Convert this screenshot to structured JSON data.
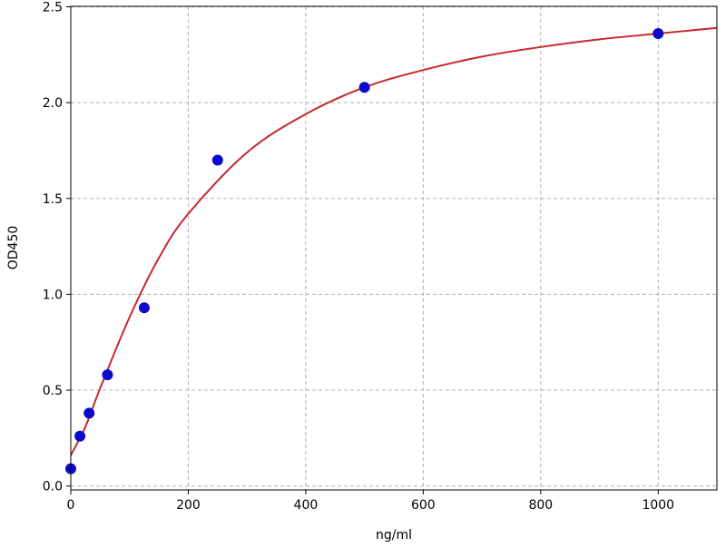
{
  "chart_data": {
    "type": "scatter",
    "title": "",
    "xlabel": "ng/ml",
    "ylabel": "OD450",
    "xlim": [
      0,
      1100
    ],
    "ylim": [
      0,
      2.5
    ],
    "xticks": [
      "0",
      "200",
      "400",
      "600",
      "800",
      "1000"
    ],
    "yticks": [
      "0.0",
      "0.5",
      "1.0",
      "1.5",
      "2.0",
      "2.5"
    ],
    "grid": true,
    "grid_style": "dashed",
    "series": [
      {
        "kind": "points",
        "color": "#0a0acc",
        "x": [
          0,
          15.6,
          31.25,
          62.5,
          125,
          250,
          500,
          1000
        ],
        "y": [
          0.09,
          0.26,
          0.38,
          0.58,
          0.93,
          1.7,
          2.08,
          2.36
        ]
      },
      {
        "kind": "fit-curve",
        "color": "#c8282d",
        "x": [
          0,
          25,
          50,
          100,
          150,
          200,
          300,
          400,
          500,
          600,
          700,
          800,
          900,
          1000,
          1100
        ],
        "y": [
          0.16,
          0.31,
          0.51,
          0.88,
          1.19,
          1.42,
          1.74,
          1.94,
          2.08,
          2.17,
          2.24,
          2.29,
          2.33,
          2.36,
          2.39
        ]
      }
    ]
  }
}
